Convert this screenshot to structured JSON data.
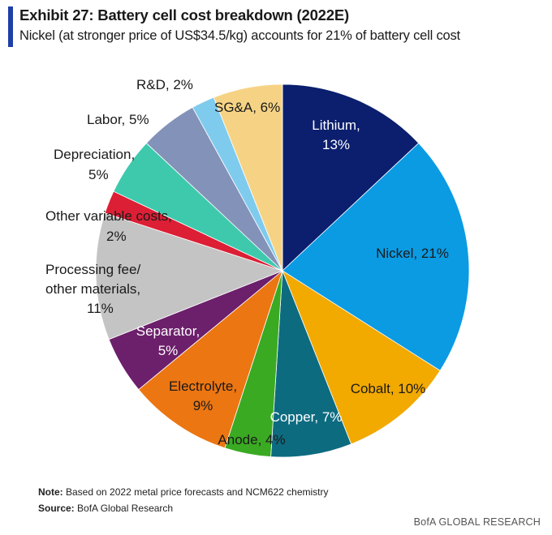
{
  "header": {
    "title": "Exhibit 27: Battery  cell cost breakdown (2022E)",
    "subtitle": "Nickel (at stronger price of US$34.5/kg) accounts for 21% of battery cell cost"
  },
  "chart_data": {
    "type": "pie",
    "slices": [
      {
        "name": "Lithium",
        "value": 13,
        "label": "Lithium,",
        "label2": "13%",
        "color": "#0b1f6e"
      },
      {
        "name": "Nickel",
        "value": 21,
        "label": "Nickel, 21%",
        "label2": "",
        "color": "#0b9be3"
      },
      {
        "name": "Cobalt",
        "value": 10,
        "label": "Cobalt, 10%",
        "label2": "",
        "color": "#f2a900"
      },
      {
        "name": "Copper",
        "value": 7,
        "label": "Copper, 7%",
        "label2": "",
        "color": "#0d6b80"
      },
      {
        "name": "Anode",
        "value": 4,
        "label": "Anode, 4%",
        "label2": "",
        "color": "#3aaa22"
      },
      {
        "name": "Electrolyte",
        "value": 9,
        "label": "Electrolyte,",
        "label2": "9%",
        "color": "#ec7612"
      },
      {
        "name": "Separator",
        "value": 5,
        "label": "Separator,",
        "label2": "5%",
        "color": "#6c1f6b"
      },
      {
        "name": "Processing fee/ other materials",
        "value": 11,
        "label": "Processing fee/",
        "label2": "other materials,",
        "label3": "11%",
        "color": "#c4c4c4"
      },
      {
        "name": "Other variable costs",
        "value": 2,
        "label": "Other variable costs,",
        "label2": "2%",
        "color": "#dc1f35"
      },
      {
        "name": "Depreciation",
        "value": 5,
        "label": "Depreciation,",
        "label2": "5%",
        "color": "#3ec9ad"
      },
      {
        "name": "Labor",
        "value": 5,
        "label": "Labor, 5%",
        "label2": "",
        "color": "#8392b8"
      },
      {
        "name": "R&D",
        "value": 2,
        "label": "R&D, 2%",
        "label2": "",
        "color": "#7fcbee"
      },
      {
        "name": "SG&A",
        "value": 6,
        "label": "SG&A, 6%",
        "label2": "",
        "color": "#f6d384"
      }
    ]
  },
  "footer": {
    "note_label": "Note:",
    "note_text": " Based on 2022  metal price forecasts and NCM622  chemistry",
    "source_label": "Source:",
    "source_text": " BofA Global Research",
    "brand": "BofA GLOBAL RESEARCH"
  }
}
